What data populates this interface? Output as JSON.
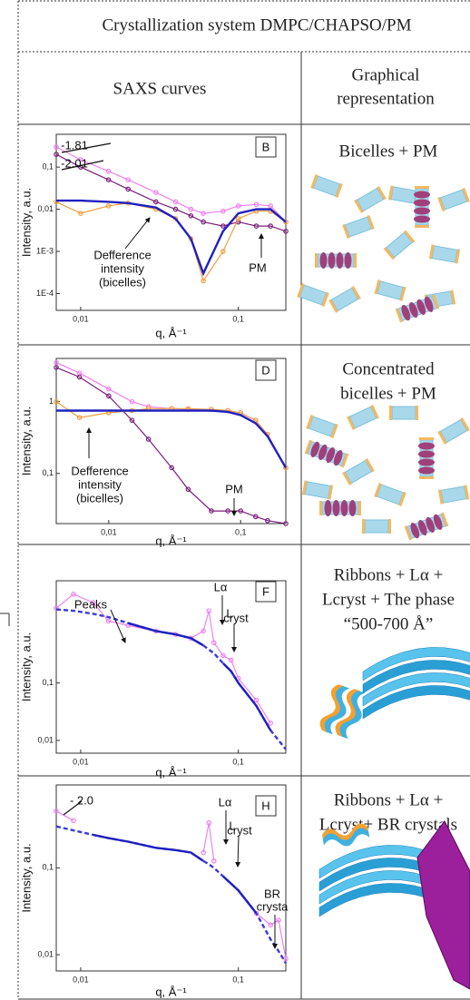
{
  "header": {
    "title": "Crystallization system DMPC/CHAPSO/PM"
  },
  "columns": [
    [
      "SAXS curves"
    ],
    [
      "Graphical",
      "representation"
    ]
  ],
  "rows": [
    {
      "panel": "B",
      "representation": [
        "Bicelles + PM"
      ],
      "chart": {
        "type": "line",
        "x_label": "q, Å⁻¹",
        "y_label": "Intensity, a.u.",
        "log_x": true,
        "log_y": true,
        "xlim": [
          0.007,
          0.2
        ],
        "ylim": [
          4e-05,
          0.6
        ],
        "xticks": [
          {
            "value": 0.01,
            "label": "0,01"
          },
          {
            "value": 0.1,
            "label": "0,1"
          }
        ],
        "yticks": [
          {
            "value": 0.0001,
            "label": "1E-4"
          },
          {
            "value": 0.001,
            "label": "1E-3"
          },
          {
            "value": 0.01,
            "label": "0,01"
          },
          {
            "value": 0.1,
            "label": "0,1"
          }
        ],
        "x": [
          0.007,
          0.01,
          0.015,
          0.02,
          0.03,
          0.04,
          0.05,
          0.06,
          0.08,
          0.1,
          0.13,
          0.16,
          0.2
        ],
        "series": [
          {
            "color": "#ee82ee",
            "style": "markers",
            "values": [
              0.3,
              0.15,
              0.08,
              0.05,
              0.025,
              0.015,
              0.01,
              0.008,
              0.009,
              0.012,
              0.013,
              0.012,
              0.005
            ]
          },
          {
            "color": "#7b1f7b",
            "style": "markers",
            "values": [
              0.2,
              0.1,
              0.05,
              0.03,
              0.015,
              0.01,
              0.007,
              0.005,
              0.004,
              0.005,
              0.004,
              0.004,
              0.003
            ]
          },
          {
            "color": "#f0a040",
            "style": "markers",
            "values": [
              0.015,
              0.008,
              0.012,
              0.014,
              0.01,
              0.006,
              0.002,
              0.0002,
              0.001,
              0.006,
              0.009,
              0.009,
              0.005
            ]
          },
          {
            "color": "#2020c0",
            "style": "solid",
            "values": [
              0.016,
              0.016,
              0.015,
              0.014,
              0.011,
              0.006,
              0.002,
              0.0003,
              0.003,
              0.008,
              0.01,
              0.01,
              0.005
            ]
          }
        ],
        "annotations": [
          "-1.81",
          "-2.01",
          "Defference",
          "intensity",
          "(bicelles)",
          "PM"
        ]
      }
    },
    {
      "panel": "D",
      "representation": [
        "Concentrated",
        "bicelles + PM"
      ],
      "chart": {
        "type": "line",
        "x_label": "q, Å⁻¹",
        "y_label": "Intensity, a.u.",
        "log_x": true,
        "log_y": true,
        "xlim": [
          0.004,
          0.22
        ],
        "ylim": [
          0.02,
          4
        ],
        "xticks": [
          {
            "value": 0.01,
            "label": "0,01"
          },
          {
            "value": 0.1,
            "label": "0,1"
          }
        ],
        "yticks": [
          {
            "value": 0.1,
            "label": "0,1"
          },
          1
        ],
        "x": [
          0.004,
          0.006,
          0.01,
          0.015,
          0.02,
          0.03,
          0.04,
          0.06,
          0.08,
          0.1,
          0.13,
          0.16,
          0.22
        ],
        "series": [
          {
            "color": "#ee82ee",
            "style": "markers",
            "values": [
              3.5,
              2.5,
              1.5,
              1.0,
              0.85,
              0.8,
              0.78,
              0.78,
              0.75,
              0.7,
              0.55,
              0.35,
              0.12
            ]
          },
          {
            "color": "#7b1f7b",
            "style": "markers",
            "values": [
              3,
              2.2,
              1.2,
              0.55,
              0.3,
              0.12,
              0.06,
              0.03,
              0.03,
              0.03,
              0.025,
              0.022,
              0.02
            ]
          },
          {
            "color": "#f0a040",
            "style": "markers",
            "values": [
              1.0,
              0.6,
              0.7,
              0.75,
              0.8,
              0.8,
              0.8,
              0.78,
              0.75,
              0.7,
              0.55,
              0.35,
              0.12
            ]
          },
          {
            "color": "#2020c0",
            "style": "solid",
            "values": [
              0.75,
              0.75,
              0.75,
              0.75,
              0.75,
              0.75,
              0.75,
              0.75,
              0.72,
              0.65,
              0.5,
              0.33,
              0.12
            ]
          }
        ],
        "annotations": [
          "Defference",
          "intensity",
          "(bicelles)",
          "PM"
        ]
      }
    },
    {
      "panel": "F",
      "representation": [
        "Ribbons + Lα +",
        "Lcryst + The phase",
        "“500-700 Å”"
      ],
      "chart": {
        "type": "line",
        "x_label": "q, Å⁻¹",
        "y_label": "Intensity, a.u.",
        "log_x": true,
        "log_y": true,
        "xlim": [
          0.007,
          0.2
        ],
        "ylim": [
          0.006,
          6
        ],
        "xticks": [
          {
            "value": 0.01,
            "label": "0,01"
          },
          {
            "value": 0.1,
            "label": "0,1"
          }
        ],
        "yticks": [
          {
            "value": 0.01,
            "label": "0,01"
          },
          {
            "value": 0.1,
            "label": "0,1"
          }
        ],
        "x": [
          0.007,
          0.009,
          0.012,
          0.015,
          0.02,
          0.03,
          0.04,
          0.05,
          0.06,
          0.065,
          0.07,
          0.08,
          0.09,
          0.1,
          0.13,
          0.16,
          0.2
        ],
        "series": [
          {
            "color": "#ee82ee",
            "style": "markers",
            "values": [
              2,
              3.5,
              2.5,
              1.2,
              1,
              0.8,
              0.7,
              0.6,
              0.8,
              1.8,
              0.5,
              0.3,
              0.25,
              0.12,
              0.05,
              0.02,
              null
            ]
          },
          {
            "color": "#3b3bd6",
            "style": "dashed",
            "values": [
              1.9,
              1.8,
              1.6,
              1.4,
              1.1,
              0.8,
              0.7,
              0.6,
              0.45,
              0.38,
              0.33,
              0.22,
              0.16,
              0.1,
              0.04,
              0.015,
              0.007
            ]
          },
          {
            "color": "#2020c0",
            "style": "solid",
            "values": [
              null,
              null,
              null,
              null,
              1.1,
              0.8,
              0.7,
              0.6,
              0.45,
              null,
              null,
              0.22,
              0.16,
              0.1,
              0.04,
              0.015,
              null
            ]
          }
        ],
        "annotations": [
          "Peaks",
          "Lα",
          "L",
          "cryst"
        ]
      }
    },
    {
      "panel": "H",
      "representation": [
        "Ribbons + Lα +",
        "Lcryst+ BR crystals"
      ],
      "chart": {
        "type": "line",
        "x_label": "q, Å⁻¹",
        "y_label": "Intensity, a.u.",
        "log_x": true,
        "log_y": true,
        "xlim": [
          0.007,
          0.2
        ],
        "ylim": [
          0.0065,
          0.9
        ],
        "xticks": [
          {
            "value": 0.01,
            "label": "0,01"
          },
          {
            "value": 0.1,
            "label": "0,1"
          }
        ],
        "yticks": [
          {
            "value": 0.01,
            "label": "0,01"
          },
          {
            "value": 0.1,
            "label": "0,1"
          }
        ],
        "x": [
          0.007,
          0.009,
          0.012,
          0.015,
          0.02,
          0.03,
          0.04,
          0.05,
          0.06,
          0.065,
          0.07,
          0.08,
          0.1,
          0.13,
          0.16,
          0.18,
          0.2
        ],
        "series": [
          {
            "color": "#ee82ee",
            "style": "markers",
            "values": [
              0.45,
              0.35,
              null,
              null,
              null,
              null,
              null,
              null,
              0.15,
              0.33,
              0.12,
              null,
              null,
              0.03,
              0.022,
              0.025,
              0.009
            ]
          },
          {
            "color": "#3b3bd6",
            "style": "dashed",
            "values": [
              0.3,
              0.27,
              0.24,
              0.22,
              0.2,
              0.17,
              0.16,
              0.15,
              0.12,
              0.11,
              0.1,
              0.08,
              0.055,
              0.03,
              0.015,
              0.011,
              0.008
            ]
          },
          {
            "color": "#2020c0",
            "style": "solid",
            "values": [
              null,
              null,
              0.24,
              0.22,
              0.2,
              0.17,
              0.16,
              0.15,
              0.12,
              null,
              null,
              0.08,
              0.055,
              0.03,
              null,
              null,
              null
            ]
          }
        ],
        "annotations": [
          "- 2.0",
          "Lα",
          "L",
          "cryst",
          "BR",
          "crysta"
        ]
      }
    }
  ]
}
